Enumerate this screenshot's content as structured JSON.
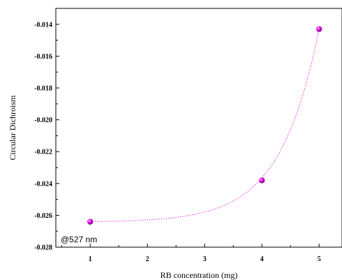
{
  "chart_data": {
    "type": "scatter",
    "xlabel": "RB concentration (mg)",
    "ylabel": "Circular Dichroism",
    "xlim": [
      0.4,
      5.4
    ],
    "ylim": [
      -0.028,
      -0.013
    ],
    "x_ticks": [
      "1",
      "2",
      "3",
      "4",
      "5"
    ],
    "y_ticks": [
      "-0.014",
      "-0.016",
      "-0.018",
      "-0.020",
      "-0.022",
      "-0.024",
      "-0.026",
      "-0.028"
    ],
    "annotation": "@527 nm",
    "grid": false,
    "points": [
      {
        "x": 1,
        "y": -0.0264
      },
      {
        "x": 4,
        "y": -0.0238
      },
      {
        "x": 5,
        "y": -0.0143
      }
    ],
    "fit_curve": {
      "style": "dotted",
      "shape": "exponential"
    },
    "colors": {
      "points": "#e000e0",
      "fit": "#e000e0",
      "axes": "#000000"
    }
  }
}
